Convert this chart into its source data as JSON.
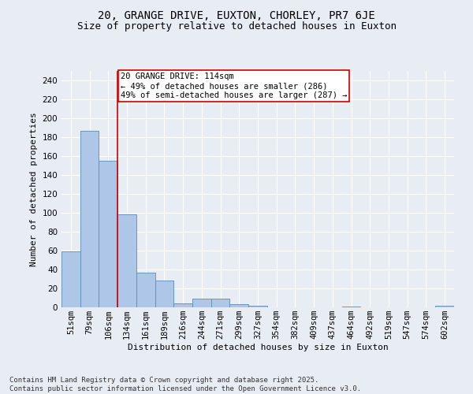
{
  "title": "20, GRANGE DRIVE, EUXTON, CHORLEY, PR7 6JE",
  "subtitle": "Size of property relative to detached houses in Euxton",
  "xlabel": "Distribution of detached houses by size in Euxton",
  "ylabel": "Number of detached properties",
  "categories": [
    "51sqm",
    "79sqm",
    "106sqm",
    "134sqm",
    "161sqm",
    "189sqm",
    "216sqm",
    "244sqm",
    "271sqm",
    "299sqm",
    "327sqm",
    "354sqm",
    "382sqm",
    "409sqm",
    "437sqm",
    "464sqm",
    "492sqm",
    "519sqm",
    "547sqm",
    "574sqm",
    "602sqm"
  ],
  "values": [
    59,
    187,
    155,
    98,
    37,
    28,
    4,
    9,
    9,
    3,
    2,
    0,
    0,
    0,
    0,
    1,
    0,
    0,
    0,
    0,
    2
  ],
  "bar_color": "#aec6e8",
  "bar_edge_color": "#5b8db8",
  "background_color": "#e8edf4",
  "grid_color": "#ffffff",
  "vline_x": 2.5,
  "vline_color": "#cc0000",
  "annotation_text": "20 GRANGE DRIVE: 114sqm\n← 49% of detached houses are smaller (286)\n49% of semi-detached houses are larger (287) →",
  "annotation_box_color": "#ffffff",
  "annotation_box_edge": "#cc0000",
  "ylim": [
    0,
    250
  ],
  "yticks": [
    0,
    20,
    40,
    60,
    80,
    100,
    120,
    140,
    160,
    180,
    200,
    220,
    240
  ],
  "footer": "Contains HM Land Registry data © Crown copyright and database right 2025.\nContains public sector information licensed under the Open Government Licence v3.0.",
  "title_fontsize": 10,
  "subtitle_fontsize": 9,
  "axis_label_fontsize": 8,
  "tick_fontsize": 7.5,
  "annotation_fontsize": 7.5,
  "footer_fontsize": 6.5
}
